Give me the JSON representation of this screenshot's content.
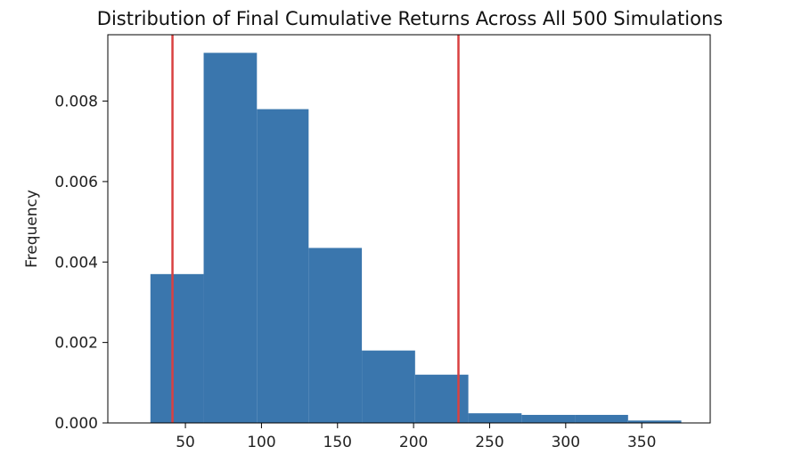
{
  "chart_data": {
    "type": "bar",
    "title": "Distribution of Final Cumulative Returns Across All 500 Simulations",
    "xlabel": "",
    "ylabel": "Frequency",
    "bins": [
      {
        "x0": 27,
        "x1": 62,
        "value": 0.0037
      },
      {
        "x0": 62,
        "x1": 97,
        "value": 0.0092
      },
      {
        "x0": 97,
        "x1": 131,
        "value": 0.0078
      },
      {
        "x0": 131,
        "x1": 166,
        "value": 0.00435
      },
      {
        "x0": 166,
        "x1": 201,
        "value": 0.0018
      },
      {
        "x0": 201,
        "x1": 236,
        "value": 0.0012
      },
      {
        "x0": 236,
        "x1": 271,
        "value": 0.00024
      },
      {
        "x0": 271,
        "x1": 306,
        "value": 0.0002
      },
      {
        "x0": 306,
        "x1": 341,
        "value": 0.0002
      },
      {
        "x0": 341,
        "x1": 376,
        "value": 6e-05
      }
    ],
    "vlines": [
      {
        "x": 41.5
      },
      {
        "x": 229.5
      }
    ],
    "xlim": [
      -1,
      395
    ],
    "ylim": [
      0,
      0.00965
    ],
    "xticks": [
      50,
      100,
      150,
      200,
      250,
      300,
      350
    ],
    "yticks": [
      0.0,
      0.002,
      0.004,
      0.006,
      0.008
    ],
    "ytick_labels": [
      "0.000",
      "0.002",
      "0.004",
      "0.006",
      "0.008"
    ],
    "grid": false,
    "legend": "none",
    "bar_color": "#3a76ad",
    "vline_color": "#d94141"
  }
}
